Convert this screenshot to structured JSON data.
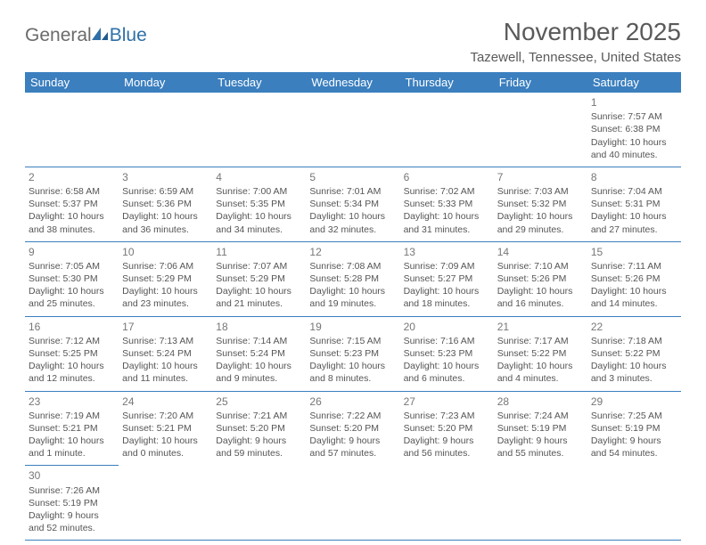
{
  "logo": {
    "part1": "General",
    "part2": "Blue"
  },
  "title": "November 2025",
  "location": "Tazewell, Tennessee, United States",
  "colors": {
    "header_bg": "#3b7fbf",
    "header_text": "#ffffff",
    "border": "#3b7fbf",
    "logo_gray": "#6b6b6b",
    "logo_blue": "#2f6fa8",
    "body_text": "#555555"
  },
  "weekdays": [
    "Sunday",
    "Monday",
    "Tuesday",
    "Wednesday",
    "Thursday",
    "Friday",
    "Saturday"
  ],
  "weeks": [
    [
      null,
      null,
      null,
      null,
      null,
      null,
      {
        "n": "1",
        "sr": "Sunrise: 7:57 AM",
        "ss": "Sunset: 6:38 PM",
        "dl": "Daylight: 10 hours and 40 minutes."
      }
    ],
    [
      {
        "n": "2",
        "sr": "Sunrise: 6:58 AM",
        "ss": "Sunset: 5:37 PM",
        "dl": "Daylight: 10 hours and 38 minutes."
      },
      {
        "n": "3",
        "sr": "Sunrise: 6:59 AM",
        "ss": "Sunset: 5:36 PM",
        "dl": "Daylight: 10 hours and 36 minutes."
      },
      {
        "n": "4",
        "sr": "Sunrise: 7:00 AM",
        "ss": "Sunset: 5:35 PM",
        "dl": "Daylight: 10 hours and 34 minutes."
      },
      {
        "n": "5",
        "sr": "Sunrise: 7:01 AM",
        "ss": "Sunset: 5:34 PM",
        "dl": "Daylight: 10 hours and 32 minutes."
      },
      {
        "n": "6",
        "sr": "Sunrise: 7:02 AM",
        "ss": "Sunset: 5:33 PM",
        "dl": "Daylight: 10 hours and 31 minutes."
      },
      {
        "n": "7",
        "sr": "Sunrise: 7:03 AM",
        "ss": "Sunset: 5:32 PM",
        "dl": "Daylight: 10 hours and 29 minutes."
      },
      {
        "n": "8",
        "sr": "Sunrise: 7:04 AM",
        "ss": "Sunset: 5:31 PM",
        "dl": "Daylight: 10 hours and 27 minutes."
      }
    ],
    [
      {
        "n": "9",
        "sr": "Sunrise: 7:05 AM",
        "ss": "Sunset: 5:30 PM",
        "dl": "Daylight: 10 hours and 25 minutes."
      },
      {
        "n": "10",
        "sr": "Sunrise: 7:06 AM",
        "ss": "Sunset: 5:29 PM",
        "dl": "Daylight: 10 hours and 23 minutes."
      },
      {
        "n": "11",
        "sr": "Sunrise: 7:07 AM",
        "ss": "Sunset: 5:29 PM",
        "dl": "Daylight: 10 hours and 21 minutes."
      },
      {
        "n": "12",
        "sr": "Sunrise: 7:08 AM",
        "ss": "Sunset: 5:28 PM",
        "dl": "Daylight: 10 hours and 19 minutes."
      },
      {
        "n": "13",
        "sr": "Sunrise: 7:09 AM",
        "ss": "Sunset: 5:27 PM",
        "dl": "Daylight: 10 hours and 18 minutes."
      },
      {
        "n": "14",
        "sr": "Sunrise: 7:10 AM",
        "ss": "Sunset: 5:26 PM",
        "dl": "Daylight: 10 hours and 16 minutes."
      },
      {
        "n": "15",
        "sr": "Sunrise: 7:11 AM",
        "ss": "Sunset: 5:26 PM",
        "dl": "Daylight: 10 hours and 14 minutes."
      }
    ],
    [
      {
        "n": "16",
        "sr": "Sunrise: 7:12 AM",
        "ss": "Sunset: 5:25 PM",
        "dl": "Daylight: 10 hours and 12 minutes."
      },
      {
        "n": "17",
        "sr": "Sunrise: 7:13 AM",
        "ss": "Sunset: 5:24 PM",
        "dl": "Daylight: 10 hours and 11 minutes."
      },
      {
        "n": "18",
        "sr": "Sunrise: 7:14 AM",
        "ss": "Sunset: 5:24 PM",
        "dl": "Daylight: 10 hours and 9 minutes."
      },
      {
        "n": "19",
        "sr": "Sunrise: 7:15 AM",
        "ss": "Sunset: 5:23 PM",
        "dl": "Daylight: 10 hours and 8 minutes."
      },
      {
        "n": "20",
        "sr": "Sunrise: 7:16 AM",
        "ss": "Sunset: 5:23 PM",
        "dl": "Daylight: 10 hours and 6 minutes."
      },
      {
        "n": "21",
        "sr": "Sunrise: 7:17 AM",
        "ss": "Sunset: 5:22 PM",
        "dl": "Daylight: 10 hours and 4 minutes."
      },
      {
        "n": "22",
        "sr": "Sunrise: 7:18 AM",
        "ss": "Sunset: 5:22 PM",
        "dl": "Daylight: 10 hours and 3 minutes."
      }
    ],
    [
      {
        "n": "23",
        "sr": "Sunrise: 7:19 AM",
        "ss": "Sunset: 5:21 PM",
        "dl": "Daylight: 10 hours and 1 minute."
      },
      {
        "n": "24",
        "sr": "Sunrise: 7:20 AM",
        "ss": "Sunset: 5:21 PM",
        "dl": "Daylight: 10 hours and 0 minutes."
      },
      {
        "n": "25",
        "sr": "Sunrise: 7:21 AM",
        "ss": "Sunset: 5:20 PM",
        "dl": "Daylight: 9 hours and 59 minutes."
      },
      {
        "n": "26",
        "sr": "Sunrise: 7:22 AM",
        "ss": "Sunset: 5:20 PM",
        "dl": "Daylight: 9 hours and 57 minutes."
      },
      {
        "n": "27",
        "sr": "Sunrise: 7:23 AM",
        "ss": "Sunset: 5:20 PM",
        "dl": "Daylight: 9 hours and 56 minutes."
      },
      {
        "n": "28",
        "sr": "Sunrise: 7:24 AM",
        "ss": "Sunset: 5:19 PM",
        "dl": "Daylight: 9 hours and 55 minutes."
      },
      {
        "n": "29",
        "sr": "Sunrise: 7:25 AM",
        "ss": "Sunset: 5:19 PM",
        "dl": "Daylight: 9 hours and 54 minutes."
      }
    ],
    [
      {
        "n": "30",
        "sr": "Sunrise: 7:26 AM",
        "ss": "Sunset: 5:19 PM",
        "dl": "Daylight: 9 hours and 52 minutes."
      },
      null,
      null,
      null,
      null,
      null,
      null
    ]
  ]
}
